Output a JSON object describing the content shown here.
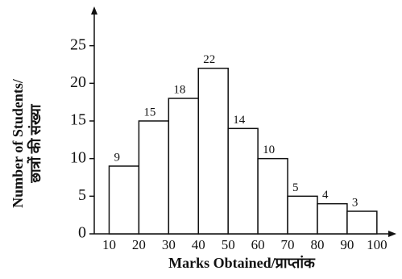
{
  "chart_data": {
    "type": "histogram",
    "x_label": "Marks Obtained/प्राप्तांक",
    "y_label": [
      "Number of Students/",
      "छात्रों की संख्या"
    ],
    "bins": [
      10,
      20,
      30,
      40,
      50,
      60,
      70,
      80,
      90,
      100
    ],
    "values": [
      9,
      15,
      18,
      22,
      14,
      10,
      5,
      4,
      3
    ],
    "color": "#ffffff",
    "edge_color": "#111111",
    "xlim": [
      5,
      106
    ],
    "ylim": [
      0,
      30
    ],
    "yticks": [
      0,
      5,
      10,
      15,
      20,
      25
    ]
  }
}
